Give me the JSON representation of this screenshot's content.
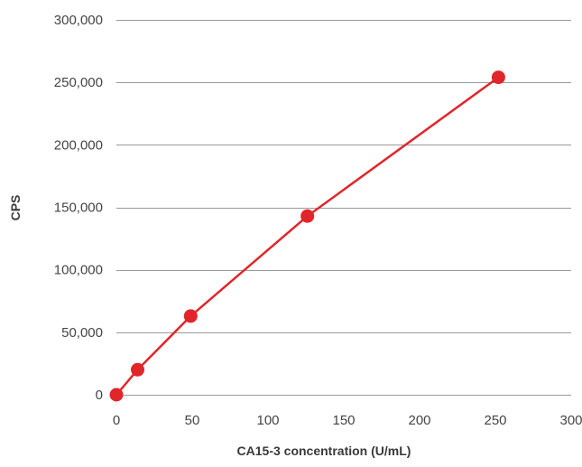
{
  "chart_data": {
    "type": "line",
    "title": "",
    "xlabel": "CA15-3 concentration (U/mL)",
    "ylabel": "CPS",
    "xlim": [
      0,
      300
    ],
    "ylim": [
      0,
      300000
    ],
    "x_ticks": [
      0,
      50,
      100,
      150,
      200,
      250,
      300
    ],
    "x_tick_labels": [
      "0",
      "50",
      "100",
      "150",
      "200",
      "250",
      "300"
    ],
    "y_ticks": [
      0,
      50000,
      100000,
      150000,
      200000,
      250000,
      300000
    ],
    "y_tick_labels": [
      "0",
      "50,000",
      "100,000",
      "150,000",
      "200,000",
      "250,000",
      "300,000"
    ],
    "grid": "horizontal",
    "legend": "none",
    "series": [
      {
        "color": "#e0262b",
        "marker": "circle",
        "x": [
          0,
          14,
          49,
          126,
          252
        ],
        "y": [
          0,
          20000,
          63000,
          143000,
          254000
        ]
      }
    ]
  }
}
